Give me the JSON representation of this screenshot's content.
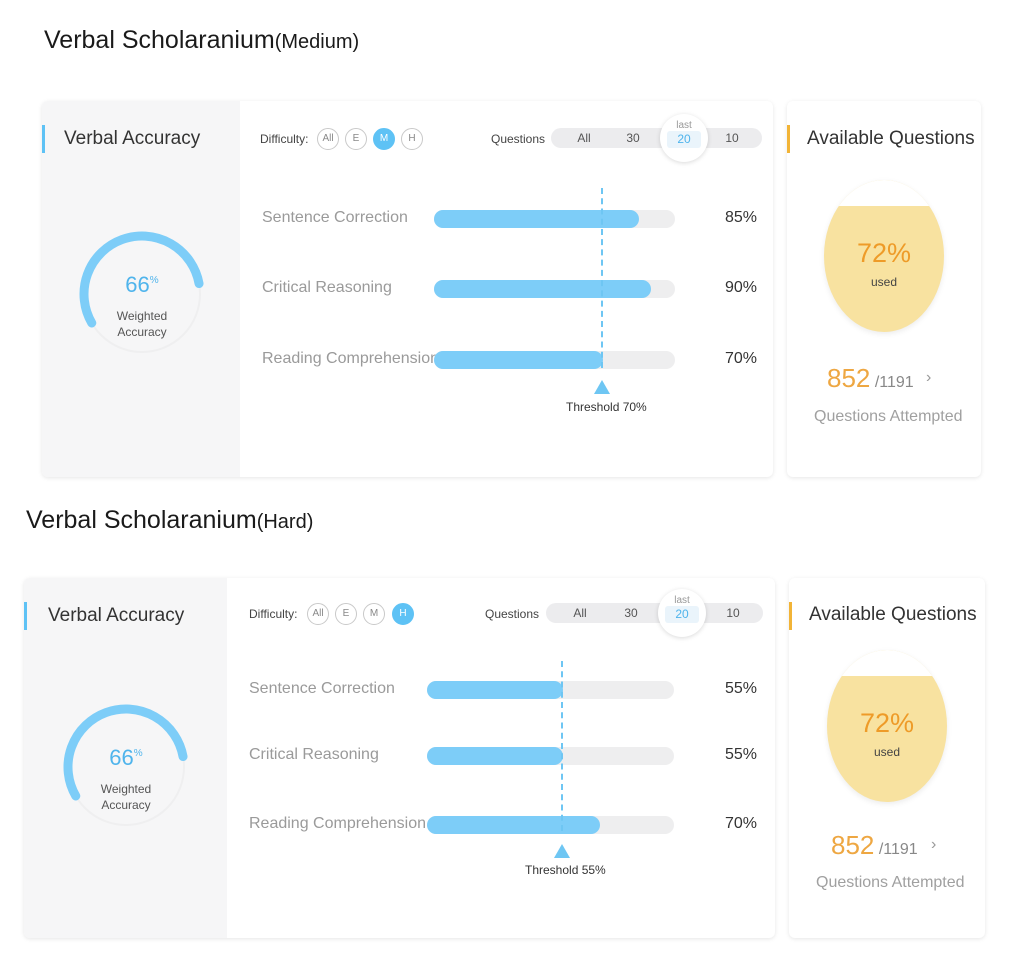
{
  "sections": [
    {
      "title": "Verbal Scholaranium",
      "level": "(Medium)",
      "accuracy": {
        "title": "Verbal Accuracy",
        "value": "66",
        "unit": "%",
        "fraction": 0.66,
        "label_line1": "Weighted",
        "label_line2": "Accuracy"
      },
      "controls": {
        "difficulty_label": "Difficulty:",
        "difficulty_options": [
          "All",
          "E",
          "M",
          "H"
        ],
        "difficulty_selected": "M",
        "questions_label": "Questions",
        "question_options": [
          "All",
          "30",
          "20",
          "10"
        ],
        "question_selected": "20",
        "question_selected_caption": "last"
      },
      "rows": [
        {
          "label": "Sentence Correction",
          "pct_label": "85%",
          "fill": 0.85
        },
        {
          "label": "Critical Reasoning",
          "pct_label": "90%",
          "fill": 0.9
        },
        {
          "label": "Reading Comprehension",
          "pct_label": "70%",
          "fill": 0.7
        }
      ],
      "threshold": {
        "label": "Threshold 70%",
        "value": 0.7
      },
      "available": {
        "title": "Available Questions",
        "used_pct": "72%",
        "used_fraction": 0.72,
        "used_label": "used",
        "attempted": "852",
        "total": "/1191",
        "caption": "Questions Attempted"
      }
    },
    {
      "title": "Verbal Scholaranium",
      "level": "(Hard)",
      "accuracy": {
        "title": "Verbal Accuracy",
        "value": "66",
        "unit": "%",
        "fraction": 0.66,
        "label_line1": "Weighted",
        "label_line2": "Accuracy"
      },
      "controls": {
        "difficulty_label": "Difficulty:",
        "difficulty_options": [
          "All",
          "E",
          "M",
          "H"
        ],
        "difficulty_selected": "H",
        "questions_label": "Questions",
        "question_options": [
          "All",
          "30",
          "20",
          "10"
        ],
        "question_selected": "20",
        "question_selected_caption": "last"
      },
      "rows": [
        {
          "label": "Sentence Correction",
          "pct_label": "55%",
          "fill": 0.55
        },
        {
          "label": "Critical Reasoning",
          "pct_label": "55%",
          "fill": 0.55
        },
        {
          "label": "Reading Comprehension",
          "pct_label": "70%",
          "fill": 0.7
        }
      ],
      "threshold": {
        "label": "Threshold 55%",
        "value": 0.55
      },
      "available": {
        "title": "Available Questions",
        "used_pct": "72%",
        "used_fraction": 0.72,
        "used_label": "used",
        "attempted": "852",
        "total": "/1191",
        "caption": "Questions Attempted"
      }
    }
  ],
  "colors": {
    "accent_blue": "#5ec2f5",
    "bar_fill": "#7dcdf8",
    "accent_orange": "#f2b437",
    "used_fill": "#f8e2a0",
    "attempt_number": "#eea742"
  }
}
